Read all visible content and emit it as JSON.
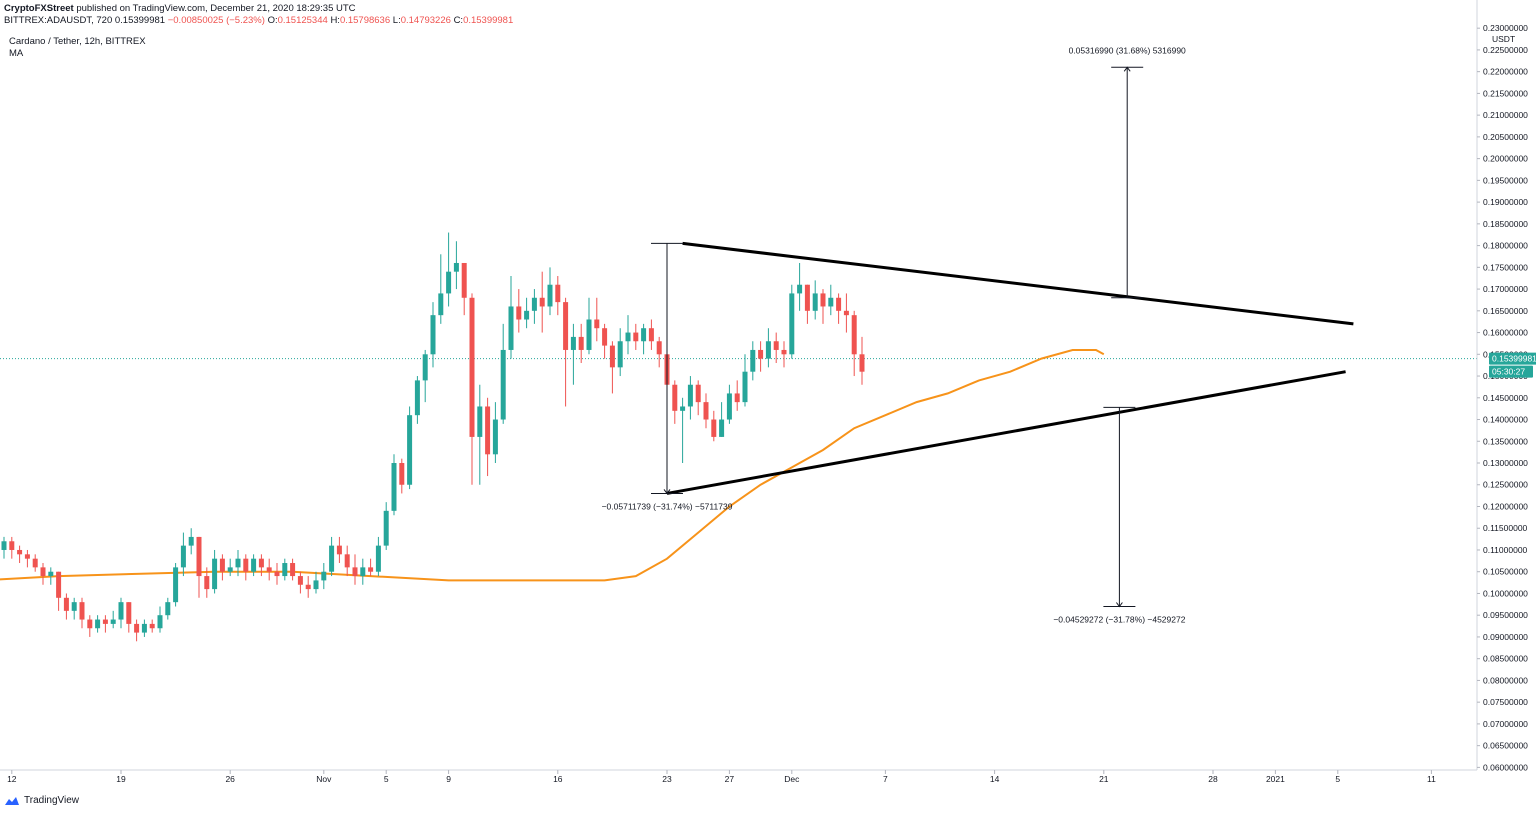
{
  "header": {
    "publisher": "CryptoFXStreet",
    "published_text": "published on TradingView.com, December 21, 2020 18:29:35 UTC",
    "symbol_line": "BITTREX:ADAUSDT, 720",
    "last": "0.15399981",
    "change": "−0.00850025 (−5.23%)",
    "o_label": "O:",
    "o_value": "0.15125344",
    "h_label": "H:",
    "h_value": "0.15798636",
    "l_label": "L:",
    "l_value": "0.14793226",
    "c_label": "C:",
    "c_value": "0.15399981"
  },
  "legend": {
    "title": "Cardano / Tether, 12h, BITTREX",
    "indicator": "MA"
  },
  "footer": {
    "brand": "TradingView"
  },
  "colors": {
    "up": "#26a69a",
    "down": "#ef5350",
    "ma": "#f7931a",
    "trend": "#000000",
    "price_tag": "#26a69a"
  },
  "chart_data": {
    "type": "candlestick",
    "y_unit": "USDT",
    "yticks": [
      "0.06000000",
      "0.06500000",
      "0.07000000",
      "0.07500000",
      "0.08000000",
      "0.08500000",
      "0.09000000",
      "0.09500000",
      "0.10000000",
      "0.10500000",
      "0.11000000",
      "0.11500000",
      "0.12000000",
      "0.12500000",
      "0.13000000",
      "0.13500000",
      "0.14000000",
      "0.14500000",
      "0.15000000",
      "0.15500000",
      "0.16000000",
      "0.16500000",
      "0.17000000",
      "0.17500000",
      "0.18000000",
      "0.18500000",
      "0.19000000",
      "0.19500000",
      "0.20000000",
      "0.20500000",
      "0.21000000",
      "0.21500000",
      "0.22000000",
      "0.22500000",
      "0.23000000"
    ],
    "ylim": [
      0.0594,
      0.2305
    ],
    "xticks": [
      "12",
      "19",
      "26",
      "Nov",
      "5",
      "9",
      "16",
      "23",
      "27",
      "Dec",
      "7",
      "14",
      "21",
      "28",
      "2021",
      "5",
      "11"
    ],
    "xtick_days": [
      12,
      19,
      26,
      32,
      36,
      40,
      47,
      54,
      58,
      62,
      68,
      75,
      82,
      89,
      93,
      97,
      103
    ],
    "x_days_ref": "day 1 = Oct 1, 2020",
    "last_price": "0.15399981",
    "countdown": "05:30:27",
    "candles_open_close_high_low": [
      [
        0.098,
        0.104,
        0.108,
        0.096
      ],
      [
        0.104,
        0.108,
        0.111,
        0.101
      ],
      [
        0.108,
        0.107,
        0.112,
        0.104
      ],
      [
        0.107,
        0.109,
        0.112,
        0.105
      ],
      [
        0.109,
        0.108,
        0.111,
        0.106
      ],
      [
        0.108,
        0.105,
        0.109,
        0.103
      ],
      [
        0.105,
        0.109,
        0.112,
        0.103
      ],
      [
        0.109,
        0.112,
        0.114,
        0.107
      ],
      [
        0.112,
        0.11,
        0.115,
        0.108
      ],
      [
        0.11,
        0.108,
        0.111,
        0.106
      ],
      [
        0.108,
        0.109,
        0.111,
        0.106
      ],
      [
        0.109,
        0.106,
        0.11,
        0.105
      ],
      [
        0.106,
        0.105,
        0.107,
        0.104
      ],
      [
        0.105,
        0.107,
        0.108,
        0.103
      ],
      [
        0.107,
        0.106,
        0.109,
        0.104
      ],
      [
        0.106,
        0.107,
        0.109,
        0.105
      ],
      [
        0.107,
        0.108,
        0.111,
        0.106
      ],
      [
        0.108,
        0.102,
        0.108,
        0.101
      ],
      [
        0.102,
        0.104,
        0.106,
        0.101
      ],
      [
        0.104,
        0.107,
        0.109,
        0.103
      ],
      [
        0.107,
        0.11,
        0.112,
        0.105
      ],
      [
        0.11,
        0.112,
        0.113,
        0.108
      ],
      [
        0.112,
        0.11,
        0.113,
        0.108
      ],
      [
        0.11,
        0.109,
        0.111,
        0.107
      ],
      [
        0.109,
        0.108,
        0.11,
        0.106
      ],
      [
        0.108,
        0.106,
        0.109,
        0.105
      ],
      [
        0.106,
        0.104,
        0.107,
        0.102
      ],
      [
        0.104,
        0.105,
        0.106,
        0.102
      ],
      [
        0.105,
        0.099,
        0.105,
        0.096
      ],
      [
        0.099,
        0.096,
        0.1,
        0.094
      ],
      [
        0.096,
        0.098,
        0.099,
        0.094
      ],
      [
        0.098,
        0.094,
        0.099,
        0.092
      ],
      [
        0.094,
        0.092,
        0.095,
        0.09
      ],
      [
        0.092,
        0.094,
        0.095,
        0.091
      ],
      [
        0.094,
        0.093,
        0.095,
        0.091
      ],
      [
        0.093,
        0.094,
        0.096,
        0.092
      ],
      [
        0.094,
        0.098,
        0.099,
        0.092
      ],
      [
        0.098,
        0.093,
        0.098,
        0.091
      ],
      [
        0.093,
        0.091,
        0.094,
        0.089
      ],
      [
        0.091,
        0.093,
        0.094,
        0.09
      ],
      [
        0.093,
        0.092,
        0.094,
        0.091
      ],
      [
        0.092,
        0.095,
        0.097,
        0.091
      ],
      [
        0.095,
        0.098,
        0.099,
        0.094
      ],
      [
        0.098,
        0.106,
        0.107,
        0.097
      ],
      [
        0.106,
        0.111,
        0.114,
        0.104
      ],
      [
        0.111,
        0.113,
        0.115,
        0.109
      ],
      [
        0.113,
        0.104,
        0.113,
        0.099
      ],
      [
        0.104,
        0.101,
        0.106,
        0.099
      ],
      [
        0.101,
        0.108,
        0.11,
        0.1
      ],
      [
        0.108,
        0.105,
        0.109,
        0.103
      ],
      [
        0.105,
        0.106,
        0.108,
        0.104
      ],
      [
        0.106,
        0.108,
        0.11,
        0.104
      ],
      [
        0.108,
        0.105,
        0.109,
        0.103
      ],
      [
        0.105,
        0.108,
        0.109,
        0.104
      ],
      [
        0.108,
        0.106,
        0.109,
        0.104
      ],
      [
        0.106,
        0.105,
        0.108,
        0.103
      ],
      [
        0.105,
        0.104,
        0.107,
        0.102
      ],
      [
        0.104,
        0.107,
        0.108,
        0.103
      ],
      [
        0.107,
        0.104,
        0.108,
        0.103
      ],
      [
        0.104,
        0.102,
        0.105,
        0.1
      ],
      [
        0.102,
        0.101,
        0.104,
        0.099
      ],
      [
        0.101,
        0.103,
        0.105,
        0.1
      ],
      [
        0.103,
        0.105,
        0.107,
        0.101
      ],
      [
        0.105,
        0.111,
        0.113,
        0.104
      ],
      [
        0.111,
        0.109,
        0.113,
        0.107
      ],
      [
        0.109,
        0.106,
        0.111,
        0.104
      ],
      [
        0.106,
        0.104,
        0.109,
        0.102
      ],
      [
        0.104,
        0.106,
        0.108,
        0.102
      ],
      [
        0.106,
        0.105,
        0.108,
        0.104
      ],
      [
        0.105,
        0.111,
        0.113,
        0.104
      ],
      [
        0.111,
        0.119,
        0.121,
        0.11
      ],
      [
        0.119,
        0.13,
        0.132,
        0.118
      ],
      [
        0.13,
        0.125,
        0.131,
        0.123
      ],
      [
        0.125,
        0.141,
        0.143,
        0.124
      ],
      [
        0.141,
        0.149,
        0.15,
        0.139
      ],
      [
        0.149,
        0.155,
        0.156,
        0.144
      ],
      [
        0.155,
        0.164,
        0.167,
        0.152
      ],
      [
        0.164,
        0.169,
        0.178,
        0.162
      ],
      [
        0.169,
        0.174,
        0.183,
        0.166
      ],
      [
        0.174,
        0.176,
        0.181,
        0.17
      ],
      [
        0.176,
        0.168,
        0.176,
        0.164
      ],
      [
        0.168,
        0.136,
        0.169,
        0.125
      ],
      [
        0.136,
        0.143,
        0.148,
        0.125
      ],
      [
        0.143,
        0.132,
        0.145,
        0.127
      ],
      [
        0.132,
        0.14,
        0.144,
        0.13
      ],
      [
        0.14,
        0.156,
        0.162,
        0.139
      ],
      [
        0.156,
        0.166,
        0.173,
        0.154
      ],
      [
        0.166,
        0.163,
        0.17,
        0.16
      ],
      [
        0.163,
        0.165,
        0.168,
        0.161
      ],
      [
        0.165,
        0.168,
        0.17,
        0.162
      ],
      [
        0.168,
        0.166,
        0.174,
        0.16
      ],
      [
        0.166,
        0.171,
        0.175,
        0.164
      ],
      [
        0.171,
        0.167,
        0.173,
        0.164
      ],
      [
        0.167,
        0.156,
        0.168,
        0.143
      ],
      [
        0.156,
        0.159,
        0.162,
        0.148
      ],
      [
        0.159,
        0.156,
        0.162,
        0.153
      ],
      [
        0.156,
        0.163,
        0.168,
        0.155
      ],
      [
        0.163,
        0.161,
        0.168,
        0.158
      ],
      [
        0.161,
        0.157,
        0.162,
        0.154
      ],
      [
        0.157,
        0.152,
        0.158,
        0.146
      ],
      [
        0.152,
        0.158,
        0.161,
        0.15
      ],
      [
        0.158,
        0.16,
        0.164,
        0.155
      ],
      [
        0.16,
        0.158,
        0.162,
        0.156
      ],
      [
        0.158,
        0.161,
        0.162,
        0.155
      ],
      [
        0.161,
        0.158,
        0.163,
        0.156
      ],
      [
        0.158,
        0.155,
        0.159,
        0.152
      ],
      [
        0.155,
        0.148,
        0.156,
        0.142
      ],
      [
        0.148,
        0.142,
        0.149,
        0.139
      ],
      [
        0.142,
        0.143,
        0.145,
        0.13
      ],
      [
        0.143,
        0.148,
        0.15,
        0.14
      ],
      [
        0.148,
        0.144,
        0.149,
        0.141
      ],
      [
        0.144,
        0.14,
        0.146,
        0.138
      ],
      [
        0.14,
        0.136,
        0.142,
        0.135
      ],
      [
        0.136,
        0.14,
        0.144,
        0.136
      ],
      [
        0.14,
        0.146,
        0.148,
        0.139
      ],
      [
        0.146,
        0.144,
        0.149,
        0.142
      ],
      [
        0.144,
        0.151,
        0.155,
        0.143
      ],
      [
        0.151,
        0.156,
        0.158,
        0.149
      ],
      [
        0.156,
        0.154,
        0.158,
        0.151
      ],
      [
        0.154,
        0.158,
        0.161,
        0.152
      ],
      [
        0.158,
        0.156,
        0.16,
        0.153
      ],
      [
        0.156,
        0.155,
        0.158,
        0.152
      ],
      [
        0.155,
        0.169,
        0.171,
        0.154
      ],
      [
        0.169,
        0.171,
        0.176,
        0.165
      ],
      [
        0.171,
        0.165,
        0.171,
        0.162
      ],
      [
        0.165,
        0.169,
        0.172,
        0.163
      ],
      [
        0.169,
        0.166,
        0.17,
        0.162
      ],
      [
        0.166,
        0.168,
        0.171,
        0.164
      ],
      [
        0.168,
        0.165,
        0.169,
        0.162
      ],
      [
        0.165,
        0.164,
        0.169,
        0.16
      ],
      [
        0.164,
        0.155,
        0.165,
        0.15
      ],
      [
        0.155,
        0.151,
        0.159,
        0.148
      ]
    ],
    "ma": {
      "day": [
        0,
        5,
        10,
        15,
        20,
        25,
        30,
        35,
        40,
        45,
        50,
        52,
        54,
        56,
        58,
        60,
        62,
        64,
        66,
        68,
        70,
        72,
        74,
        76,
        78,
        80,
        81.5,
        82
      ],
      "value": [
        0.0935,
        0.098,
        0.103,
        0.104,
        0.1045,
        0.105,
        0.105,
        0.104,
        0.103,
        0.103,
        0.103,
        0.104,
        0.108,
        0.114,
        0.12,
        0.125,
        0.129,
        0.133,
        0.138,
        0.141,
        0.144,
        0.146,
        0.149,
        0.151,
        0.154,
        0.156,
        0.156,
        0.155
      ]
    },
    "trendlines": [
      {
        "from_day": 55,
        "from": 0.1805,
        "to_day": 98,
        "to": 0.162
      },
      {
        "from_day": 54,
        "from": 0.123,
        "to_day": 97.5,
        "to": 0.151
      }
    ],
    "measurements": [
      {
        "label": "0.05316990 (31.68%) 5316990",
        "from": 0.168,
        "to": 0.221,
        "at_day": 83.5
      },
      {
        "label": "−0.05711739 (−31.74%) −5711739",
        "from": 0.1805,
        "to": 0.123,
        "at_day": 54
      },
      {
        "label": "−0.04529272 (−31.78%) −4529272",
        "from": 0.1428,
        "to": 0.097,
        "at_day": 83
      }
    ]
  }
}
